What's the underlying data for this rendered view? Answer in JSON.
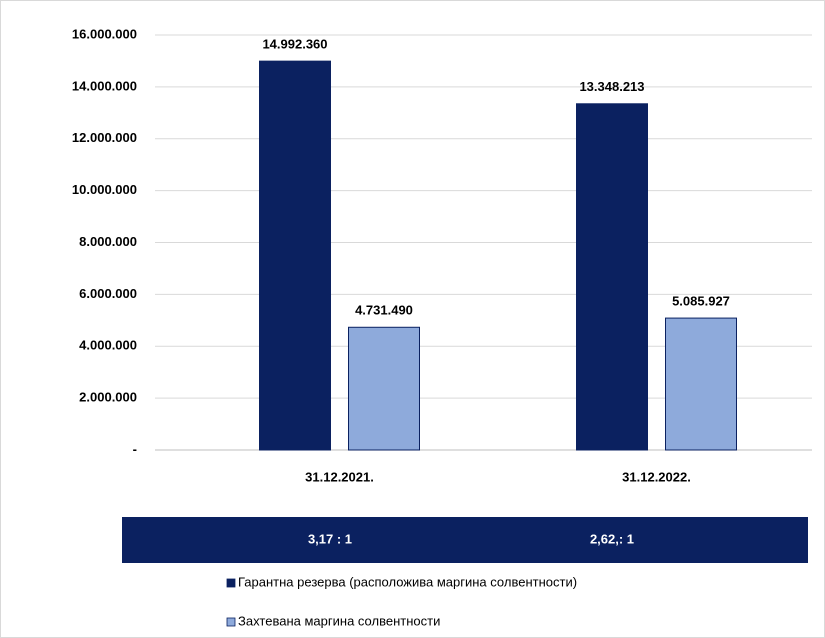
{
  "chart_data": {
    "type": "bar",
    "categories": [
      "31.12.2021.",
      "31.12.2022."
    ],
    "series": [
      {
        "name": "Гарантна резерва (расположива маргина солвентности)",
        "color": "#0b2160",
        "values": [
          14992360,
          13348213
        ],
        "value_labels": [
          "14.992.360",
          "13.348.213"
        ]
      },
      {
        "name": "Захтевана маргина солвентности",
        "color": "#8eaadb",
        "values": [
          4731490,
          5085927
        ],
        "value_labels": [
          "4.731.490",
          "5.085.927"
        ]
      }
    ],
    "ylim": [
      0,
      16000000
    ],
    "yticks": [
      {
        "value": 0,
        "label": "-"
      },
      {
        "value": 2000000,
        "label": "2.000.000"
      },
      {
        "value": 4000000,
        "label": "4.000.000"
      },
      {
        "value": 6000000,
        "label": "6.000.000"
      },
      {
        "value": 8000000,
        "label": "8.000.000"
      },
      {
        "value": 10000000,
        "label": "10.000.000"
      },
      {
        "value": 12000000,
        "label": "12.000.000"
      },
      {
        "value": 14000000,
        "label": "14.000.000"
      },
      {
        "value": 16000000,
        "label": "16.000.000"
      }
    ],
    "grid": true,
    "annotations": [
      "3,17 : 1",
      "2,62,: 1"
    ],
    "legend": "bottom"
  }
}
